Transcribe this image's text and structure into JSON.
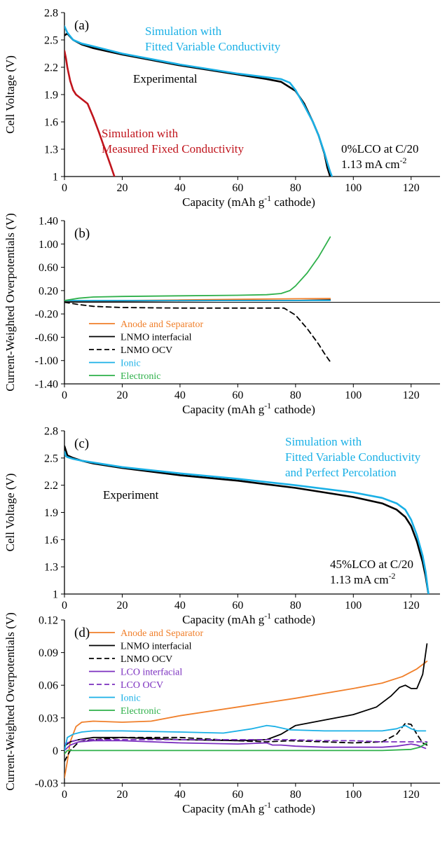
{
  "chart_data": [
    {
      "panel": "(a)",
      "type": "line",
      "xlabel": "Capacity (mAh g⁻¹ cathode)",
      "ylabel": "Cell Voltage (V)",
      "xlim": [
        0,
        130
      ],
      "ylim": [
        1,
        2.8
      ],
      "xticks": [
        "0",
        "20",
        "40",
        "60",
        "80",
        "100",
        "120"
      ],
      "yticks": [
        "1",
        "1.3",
        "1.6",
        "1.9",
        "2.2",
        "2.5",
        "2.8"
      ],
      "grid": false,
      "annotations": [
        {
          "lines": [
            "Simulation with",
            "Fitted Variable Conductivity"
          ],
          "color": "#1ab0e6"
        },
        {
          "lines": [
            "Experimental"
          ],
          "color": "#000000"
        },
        {
          "lines": [
            "Simulation with",
            "Measured Fixed Conductivity"
          ],
          "color": "#c0141c"
        },
        {
          "lines": [
            "0%LCO at C/20",
            "1.13 mA cm⁻²"
          ],
          "color": "#000000"
        }
      ],
      "series": [
        {
          "color": "#000000",
          "x": [
            0,
            1,
            3,
            6,
            10,
            20,
            30,
            40,
            50,
            60,
            70,
            75,
            80,
            83,
            86,
            88,
            90,
            91,
            92
          ],
          "y": [
            2.55,
            2.57,
            2.5,
            2.45,
            2.41,
            2.34,
            2.28,
            2.22,
            2.17,
            2.12,
            2.07,
            2.04,
            1.94,
            1.8,
            1.6,
            1.45,
            1.25,
            1.1,
            1.0
          ]
        },
        {
          "color": "#1ab0e6",
          "x": [
            0,
            1,
            3,
            6,
            10,
            20,
            30,
            40,
            50,
            60,
            70,
            75,
            78,
            80,
            83,
            86,
            88,
            90,
            91,
            92,
            92.6
          ],
          "y": [
            2.65,
            2.58,
            2.5,
            2.46,
            2.43,
            2.35,
            2.29,
            2.23,
            2.18,
            2.13,
            2.09,
            2.07,
            2.03,
            1.95,
            1.78,
            1.6,
            1.45,
            1.26,
            1.15,
            1.05,
            1.0
          ]
        },
        {
          "color": "#c0141c",
          "x": [
            0,
            0.5,
            1,
            2,
            3,
            4,
            6,
            8,
            10,
            12,
            14,
            16,
            17.3
          ],
          "y": [
            2.38,
            2.3,
            2.2,
            2.05,
            1.95,
            1.9,
            1.85,
            1.8,
            1.65,
            1.48,
            1.3,
            1.12,
            1.0
          ]
        }
      ]
    },
    {
      "panel": "(b)",
      "type": "line",
      "xlabel": "Capacity (mAh g⁻¹ cathode)",
      "ylabel": "Current-Weighted Overpotentials (V)",
      "xlim": [
        0,
        130
      ],
      "ylim": [
        -1.4,
        1.4
      ],
      "xticks": [
        "0",
        "20",
        "40",
        "60",
        "80",
        "100",
        "120"
      ],
      "yticks": [
        "-1.40",
        "-1.00",
        "-0.60",
        "-0.20",
        "0.20",
        "0.60",
        "1.00",
        "1.40"
      ],
      "grid": false,
      "legend_position": "lower-left",
      "series": [
        {
          "name": "Anode and Separator",
          "color": "#f07f2a",
          "dash": "solid",
          "x": [
            0,
            20,
            40,
            60,
            80,
            92
          ],
          "y": [
            0.02,
            0.03,
            0.04,
            0.05,
            0.06,
            0.065
          ]
        },
        {
          "name": "LNMO interfacial",
          "color": "#000000",
          "dash": "solid",
          "x": [
            0,
            20,
            40,
            60,
            80,
            92
          ],
          "y": [
            0.02,
            0.02,
            0.025,
            0.03,
            0.03,
            0.04
          ]
        },
        {
          "name": "LNMO OCV",
          "color": "#000000",
          "dash": "dashed",
          "x": [
            0,
            5,
            10,
            20,
            40,
            60,
            70,
            76,
            80,
            84,
            88,
            90,
            92
          ],
          "y": [
            0.0,
            -0.04,
            -0.07,
            -0.09,
            -0.1,
            -0.1,
            -0.1,
            -0.1,
            -0.22,
            -0.45,
            -0.72,
            -0.88,
            -1.02
          ]
        },
        {
          "name": "Ionic",
          "color": "#1ab0e6",
          "dash": "solid",
          "x": [
            0,
            20,
            40,
            60,
            80,
            92
          ],
          "y": [
            0.03,
            0.03,
            0.03,
            0.03,
            0.03,
            0.03
          ]
        },
        {
          "name": "Electronic",
          "color": "#2eb04a",
          "dash": "solid",
          "x": [
            0,
            5,
            10,
            20,
            40,
            60,
            70,
            75,
            78,
            80,
            84,
            88,
            90,
            92
          ],
          "y": [
            0.03,
            0.07,
            0.09,
            0.1,
            0.11,
            0.12,
            0.13,
            0.15,
            0.2,
            0.28,
            0.5,
            0.78,
            0.95,
            1.12
          ]
        }
      ]
    },
    {
      "panel": "(c)",
      "type": "line",
      "xlabel": "Capacity (mAh g⁻¹ cathode)",
      "ylabel": "Cell Voltage (V)",
      "xlim": [
        0,
        130
      ],
      "ylim": [
        1,
        2.8
      ],
      "xticks": [
        "0",
        "20",
        "40",
        "60",
        "80",
        "100",
        "120"
      ],
      "yticks": [
        "1",
        "1.3",
        "1.6",
        "1.9",
        "2.2",
        "2.5",
        "2.8"
      ],
      "grid": false,
      "annotations": [
        {
          "lines": [
            "Simulation with",
            "Fitted Variable Conductivity",
            "and Perfect Percolation"
          ],
          "color": "#1ab0e6"
        },
        {
          "lines": [
            "Experiment"
          ],
          "color": "#000000"
        },
        {
          "lines": [
            "45%LCO at C/20",
            "1.13 mA cm⁻²"
          ],
          "color": "#000000"
        }
      ],
      "series": [
        {
          "color": "#000000",
          "x": [
            0,
            0.5,
            1,
            3,
            6,
            10,
            20,
            40,
            60,
            80,
            100,
            110,
            115,
            118,
            120,
            122,
            124,
            125,
            126
          ],
          "y": [
            2.63,
            2.58,
            2.53,
            2.5,
            2.47,
            2.44,
            2.39,
            2.31,
            2.25,
            2.17,
            2.07,
            2.0,
            1.93,
            1.85,
            1.75,
            1.58,
            1.35,
            1.2,
            1.0
          ]
        },
        {
          "color": "#1ab0e6",
          "x": [
            0,
            0.5,
            1,
            3,
            6,
            10,
            20,
            40,
            60,
            80,
            100,
            110,
            115,
            118,
            120,
            122,
            124,
            125,
            126
          ],
          "y": [
            2.57,
            2.52,
            2.51,
            2.49,
            2.47,
            2.45,
            2.4,
            2.33,
            2.27,
            2.2,
            2.12,
            2.06,
            2.0,
            1.93,
            1.82,
            1.65,
            1.42,
            1.25,
            1.0
          ]
        }
      ]
    },
    {
      "panel": "(d)",
      "type": "line",
      "xlabel": "Capacity (mAh g⁻¹ cathode)",
      "ylabel": "Current-Weighted Overpotentials (V)",
      "xlim": [
        0,
        130
      ],
      "ylim": [
        -0.03,
        0.12
      ],
      "xticks": [
        "0",
        "20",
        "40",
        "60",
        "80",
        "100",
        "120"
      ],
      "yticks": [
        "-0.03",
        "0",
        "0.03",
        "0.06",
        "0.09",
        "0.12"
      ],
      "grid": false,
      "legend_position": "top-left",
      "series": [
        {
          "name": "Anode and Separator",
          "color": "#f07f2a",
          "dash": "solid",
          "x": [
            0,
            1,
            2,
            4,
            6,
            10,
            20,
            30,
            40,
            60,
            80,
            100,
            110,
            117,
            122,
            125.5
          ],
          "y": [
            -0.025,
            -0.01,
            0.008,
            0.022,
            0.026,
            0.027,
            0.026,
            0.027,
            0.032,
            0.04,
            0.048,
            0.057,
            0.062,
            0.068,
            0.075,
            0.082
          ]
        },
        {
          "name": "LNMO interfacial",
          "color": "#000000",
          "dash": "solid",
          "x": [
            0,
            2,
            5,
            10,
            20,
            40,
            60,
            70,
            75,
            80,
            90,
            100,
            108,
            113,
            116,
            118,
            120,
            122,
            124,
            125.5
          ],
          "y": [
            0.004,
            0.008,
            0.01,
            0.012,
            0.012,
            0.01,
            0.009,
            0.01,
            0.015,
            0.023,
            0.028,
            0.033,
            0.04,
            0.05,
            0.058,
            0.06,
            0.057,
            0.057,
            0.07,
            0.098
          ]
        },
        {
          "name": "LNMO OCV",
          "color": "#000000",
          "dash": "dashed",
          "x": [
            0,
            2,
            5,
            10,
            20,
            40,
            60,
            70,
            78,
            90,
            100,
            110,
            115,
            118,
            120,
            122,
            124,
            125.5
          ],
          "y": [
            -0.01,
            0.0,
            0.008,
            0.01,
            0.012,
            0.012,
            0.009,
            0.008,
            0.009,
            0.008,
            0.007,
            0.008,
            0.015,
            0.025,
            0.024,
            0.015,
            0.007,
            0.005
          ]
        },
        {
          "name": "LCO interfacial",
          "color": "#7b2fbf",
          "dash": "solid",
          "x": [
            0,
            2,
            5,
            10,
            20,
            40,
            60,
            70,
            72,
            75,
            80,
            90,
            100,
            110,
            115,
            120,
            122,
            125
          ],
          "y": [
            0.0,
            0.005,
            0.008,
            0.009,
            0.009,
            0.007,
            0.006,
            0.007,
            0.005,
            0.005,
            0.004,
            0.003,
            0.003,
            0.003,
            0.004,
            0.006,
            0.005,
            0.002
          ]
        },
        {
          "name": "LCO OCV",
          "color": "#7b2fbf",
          "dash": "dashed",
          "x": [
            0,
            2,
            5,
            10,
            20,
            40,
            60,
            70,
            78,
            90,
            100,
            110,
            120,
            125.5
          ],
          "y": [
            0.006,
            0.008,
            0.01,
            0.01,
            0.01,
            0.01,
            0.01,
            0.01,
            0.01,
            0.009,
            0.009,
            0.008,
            0.008,
            0.008
          ]
        },
        {
          "name": "Ionic",
          "color": "#1ab0e6",
          "dash": "solid",
          "x": [
            0,
            1,
            3,
            6,
            10,
            20,
            40,
            55,
            65,
            70,
            73,
            78,
            90,
            100,
            110,
            115,
            118,
            120,
            122,
            125
          ],
          "y": [
            0.0,
            0.012,
            0.015,
            0.017,
            0.018,
            0.018,
            0.017,
            0.016,
            0.02,
            0.023,
            0.022,
            0.019,
            0.018,
            0.018,
            0.018,
            0.02,
            0.023,
            0.02,
            0.018,
            0.018
          ]
        },
        {
          "name": "Electronic",
          "color": "#2eb04a",
          "dash": "solid",
          "x": [
            0,
            1,
            3,
            10,
            20,
            40,
            60,
            80,
            100,
            110,
            120,
            123,
            125.5
          ],
          "y": [
            -0.003,
            0.0,
            0.0,
            0.0,
            0.0,
            0.0,
            0.0,
            0.0,
            0.0,
            0.0,
            0.001,
            0.003,
            0.007
          ]
        }
      ]
    }
  ]
}
